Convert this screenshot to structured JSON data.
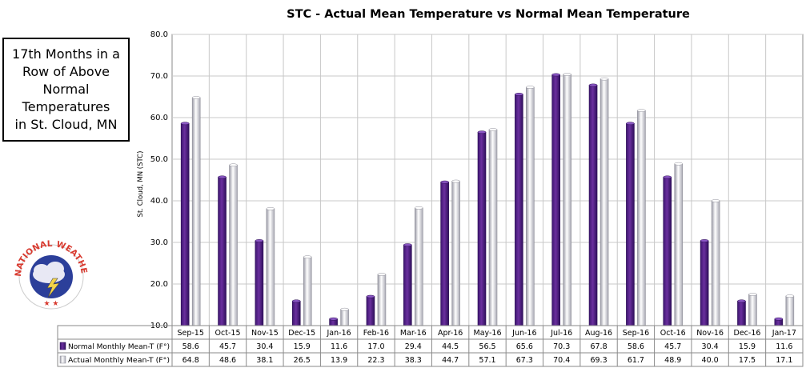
{
  "callout": {
    "text": "17th Months in a\nRow of Above\nNormal\nTemperatures\nin St. Cloud, MN"
  },
  "logo": {
    "text": "NATIONAL WEATHER SERVICE",
    "colors": {
      "ring": "#d83a2f",
      "inner": "#2c3f9a"
    }
  },
  "chart_data": {
    "type": "bar",
    "title": "STC  - Actual Mean Temperature vs Normal Mean Temperature",
    "ylabel": "St. Cloud, MN (STC)",
    "xlabel": "",
    "ylim": [
      10,
      80
    ],
    "yticks": [
      "10.0",
      "20.0",
      "30.0",
      "40.0",
      "50.0",
      "60.0",
      "70.0",
      "80.0"
    ],
    "grid": true,
    "legend": "data-table-below",
    "categories": [
      "Sep-15",
      "Oct-15",
      "Nov-15",
      "Dec-15",
      "Jan-16",
      "Feb-16",
      "Mar-16",
      "Apr-16",
      "May-16",
      "Jun-16",
      "Jul-16",
      "Aug-16",
      "Sep-16",
      "Oct-16",
      "Nov-16",
      "Dec-16",
      "Jan-17"
    ],
    "series": [
      {
        "name": "Normal Monthly Mean-T (F°)",
        "color": "#6a2f9e",
        "values": [
          58.6,
          45.7,
          30.4,
          15.9,
          11.6,
          17.0,
          29.4,
          44.5,
          56.5,
          65.6,
          70.3,
          67.8,
          58.6,
          45.7,
          30.4,
          15.9,
          11.6
        ],
        "labels": [
          "58.6",
          "45.7",
          "30.4",
          "15.9",
          "11.6",
          "17.0",
          "29.4",
          "44.5",
          "56.5",
          "65.6",
          "70.3",
          "67.8",
          "58.6",
          "45.7",
          "30.4",
          "15.9",
          "11.6"
        ]
      },
      {
        "name": "Actual Monthly Mean-T (F°)",
        "color": "#d8d8e0",
        "values": [
          64.8,
          48.6,
          38.1,
          26.5,
          13.9,
          22.3,
          38.3,
          44.7,
          57.1,
          67.3,
          70.4,
          69.3,
          61.7,
          48.9,
          40.0,
          17.5,
          17.1
        ],
        "labels": [
          "64.8",
          "48.6",
          "38.1",
          "26.5",
          "13.9",
          "22.3",
          "38.3",
          "44.7",
          "57.1",
          "67.3",
          "70.4",
          "69.3",
          "61.7",
          "48.9",
          "40.0",
          "17.5",
          "17.1"
        ]
      }
    ]
  }
}
